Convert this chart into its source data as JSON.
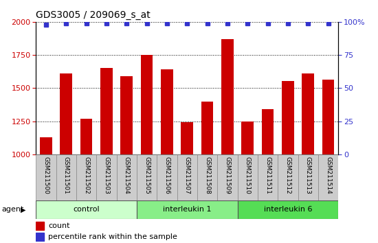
{
  "title": "GDS3005 / 209069_s_at",
  "samples": [
    "GSM211500",
    "GSM211501",
    "GSM211502",
    "GSM211503",
    "GSM211504",
    "GSM211505",
    "GSM211506",
    "GSM211507",
    "GSM211508",
    "GSM211509",
    "GSM211510",
    "GSM211511",
    "GSM211512",
    "GSM211513",
    "GSM211514"
  ],
  "counts": [
    1130,
    1610,
    1270,
    1650,
    1590,
    1750,
    1640,
    1245,
    1400,
    1870,
    1250,
    1340,
    1555,
    1610,
    1565
  ],
  "percentile_ranks": [
    98,
    99,
    99,
    99,
    99,
    99,
    99,
    99,
    99,
    99,
    99,
    99,
    99,
    99,
    99
  ],
  "bar_color": "#cc0000",
  "dot_color": "#3333cc",
  "ylim_left": [
    1000,
    2000
  ],
  "ylim_right": [
    0,
    100
  ],
  "yticks_left": [
    1000,
    1250,
    1500,
    1750,
    2000
  ],
  "yticks_right": [
    0,
    25,
    50,
    75,
    100
  ],
  "groups": [
    {
      "label": "control",
      "start": 0,
      "end": 4,
      "color": "#ccffcc"
    },
    {
      "label": "interleukin 1",
      "start": 5,
      "end": 9,
      "color": "#88ee88"
    },
    {
      "label": "interleukin 6",
      "start": 10,
      "end": 14,
      "color": "#55dd55"
    }
  ],
  "plot_bg": "#ffffff",
  "tick_label_color_left": "#cc0000",
  "tick_label_color_right": "#3333cc",
  "legend_count_label": "count",
  "legend_pct_label": "percentile rank within the sample",
  "gray_box_color": "#cccccc"
}
